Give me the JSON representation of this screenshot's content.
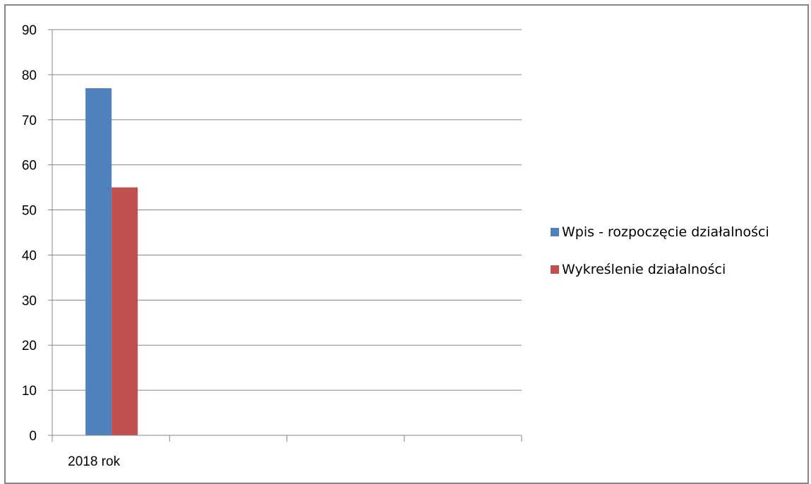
{
  "chart_data": {
    "type": "bar",
    "title": "",
    "xlabel": "",
    "ylabel": "",
    "categories": [
      "2018 rok",
      "",
      "",
      ""
    ],
    "ylim": [
      0,
      90
    ],
    "yticks": [
      0,
      10,
      20,
      30,
      40,
      50,
      60,
      70,
      80,
      90
    ],
    "grid": true,
    "legend_position": "right",
    "series": [
      {
        "name": "Wpis - rozpoczęcie działalności",
        "color": "#4F81BD",
        "values": [
          77,
          null,
          null,
          null
        ]
      },
      {
        "name": "Wykreślenie działalności",
        "color": "#C0504D",
        "values": [
          55,
          null,
          null,
          null
        ]
      }
    ]
  }
}
